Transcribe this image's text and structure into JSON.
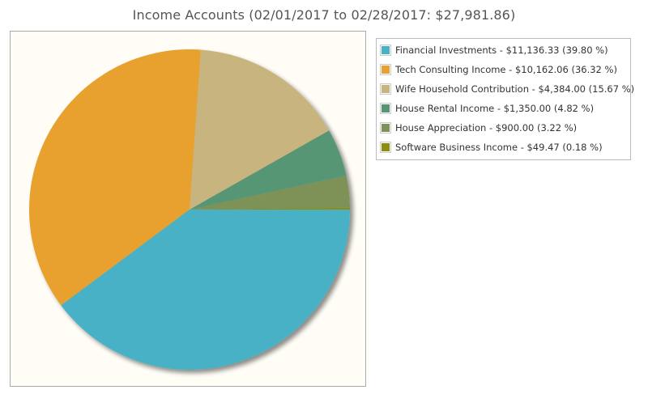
{
  "chart_data": {
    "type": "pie",
    "title": "Income Accounts (02/01/2017 to 02/28/2017: $27,981.86)",
    "legend_position": "right",
    "slices": [
      {
        "label": "Financial Investments - $11,136.33 (39.80 %)",
        "value": 11136.33,
        "percent": 39.8,
        "color": "#49b1c5"
      },
      {
        "label": "Tech Consulting Income - $10,162.06 (36.32 %)",
        "value": 10162.06,
        "percent": 36.32,
        "color": "#e8a12e"
      },
      {
        "label": "Wife Household Contribution - $4,384.00 (15.67 %)",
        "value": 4384.0,
        "percent": 15.67,
        "color": "#c8b47e"
      },
      {
        "label": "House Rental Income - $1,350.00 (4.82 %)",
        "value": 1350.0,
        "percent": 4.82,
        "color": "#579675"
      },
      {
        "label": "House Appreciation - $900.00 (3.22 %)",
        "value": 900.0,
        "percent": 3.22,
        "color": "#7e9258"
      },
      {
        "label": "Software Business Income - $49.47 (0.18 %)",
        "value": 49.47,
        "percent": 0.18,
        "color": "#8f8d0e"
      }
    ]
  }
}
